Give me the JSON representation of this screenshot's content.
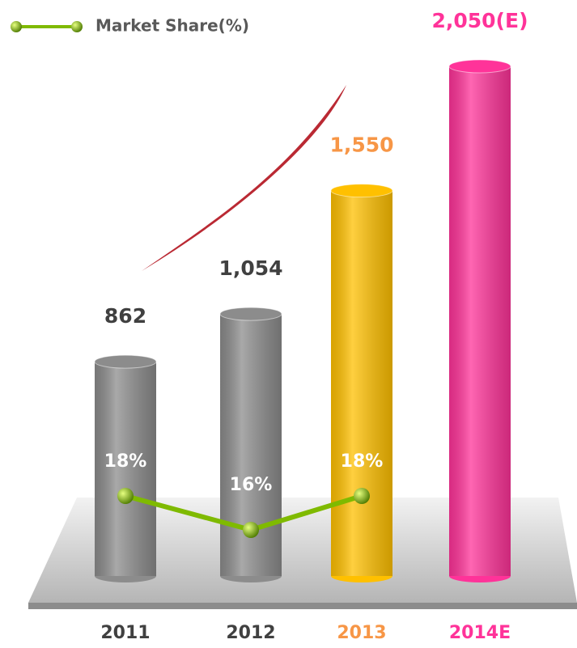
{
  "chart_data": {
    "type": "bar",
    "categories": [
      "2011",
      "2012",
      "2013",
      "2014E"
    ],
    "series": [
      {
        "type": "bar",
        "values": [
          862,
          1054,
          1550,
          2050
        ],
        "value_labels": [
          "862",
          "1,054",
          "1,550",
          "2,050(E)"
        ],
        "colors": [
          "#8c8c8c",
          "#8c8c8c",
          "#ffc000",
          "#ff3399"
        ],
        "label_colors": [
          "#404040",
          "#404040",
          "#f79646",
          "#ff3399"
        ]
      },
      {
        "type": "line",
        "name": "Market Share(%)",
        "axis": "y2",
        "color": "#7fba00",
        "values": [
          18,
          16,
          18,
          null
        ],
        "value_labels": [
          "18%",
          "16%",
          "18%",
          null
        ]
      }
    ]
  }
}
